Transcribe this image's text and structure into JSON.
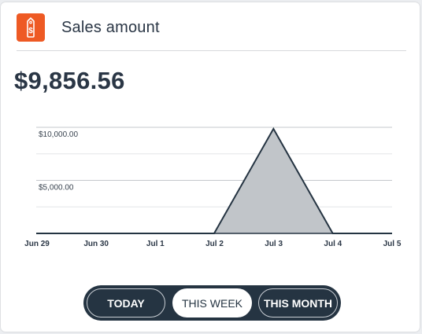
{
  "card": {
    "title": "Sales amount",
    "icon": "price-tag-dollar-icon",
    "icon_color": "#ee5a24",
    "amount": "$9,856.56"
  },
  "range_toggle": {
    "options": [
      {
        "label": "TODAY",
        "selected": false
      },
      {
        "label": "THIS WEEK",
        "selected": true
      },
      {
        "label": "THIS MONTH",
        "selected": false
      }
    ]
  },
  "chart_data": {
    "type": "area",
    "x": [
      "Jun 29",
      "Jun 30",
      "Jul 1",
      "Jul 2",
      "Jul 3",
      "Jul 4",
      "Jul 5"
    ],
    "y_tick_labels": [
      "$5,000.00",
      "$10,000.00"
    ],
    "y_ticks": [
      5000,
      10000
    ],
    "series": [
      {
        "values": [
          0,
          0,
          0,
          0,
          9856.56,
          0,
          0
        ]
      }
    ],
    "ylim": [
      0,
      10000
    ],
    "grid": true,
    "fill_color": "#c1c5c9",
    "line_color": "#253442"
  }
}
